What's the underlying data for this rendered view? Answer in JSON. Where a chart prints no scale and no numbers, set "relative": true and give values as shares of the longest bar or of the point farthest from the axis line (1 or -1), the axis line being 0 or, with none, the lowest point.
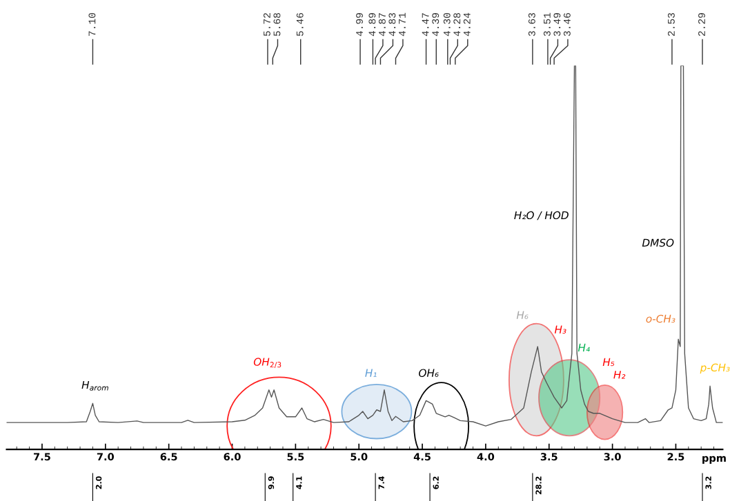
{
  "chart_data": {
    "type": "line",
    "relative": true,
    "xlabel": "ppm",
    "color": "#555555",
    "xlim": [
      7.78,
      2.13
    ],
    "xticks": [
      7.5,
      {
        "value": 7,
        "label": "7.0"
      },
      6.5,
      {
        "value": 6,
        "label": "6.0"
      },
      5.5,
      {
        "value": 5,
        "label": "5.0"
      },
      4.5,
      {
        "value": 4,
        "label": "4.0"
      },
      3.5,
      {
        "value": 3,
        "label": "3.0"
      },
      2.5
    ],
    "x": [
      7.78,
      7.5,
      7.3,
      7.15,
      7.12,
      7.1,
      7.08,
      7.05,
      6.9,
      6.75,
      6.7,
      6.4,
      6.35,
      6.3,
      6.0,
      5.9,
      5.82,
      5.76,
      5.71,
      5.69,
      5.67,
      5.63,
      5.57,
      5.5,
      5.45,
      5.41,
      5.35,
      5.28,
      5.2,
      5.08,
      5.0,
      4.97,
      4.93,
      4.89,
      4.86,
      4.83,
      4.8,
      4.77,
      4.74,
      4.71,
      4.65,
      4.58,
      4.52,
      4.47,
      4.42,
      4.39,
      4.32,
      4.29,
      4.25,
      4.2,
      4.1,
      4.0,
      3.9,
      3.8,
      3.7,
      3.64,
      3.59,
      3.56,
      3.52,
      3.49,
      3.46,
      3.4,
      3.36,
      3.32,
      3.3,
      3.29,
      3.28,
      3.27,
      3.25,
      3.22,
      3.19,
      3.15,
      3.1,
      3.0,
      2.9,
      2.8,
      2.74,
      2.71,
      2.62,
      2.56,
      2.53,
      2.5,
      2.48,
      2.465,
      2.46,
      2.44,
      2.43,
      2.4,
      2.36,
      2.3,
      2.26,
      2.24,
      2.23,
      2.21,
      2.18,
      2.13
    ],
    "values": [
      0.07,
      0.07,
      0.07,
      0.072,
      0.099,
      0.12,
      0.089,
      0.072,
      0.07,
      0.074,
      0.07,
      0.07,
      0.076,
      0.07,
      0.072,
      0.076,
      0.089,
      0.108,
      0.155,
      0.136,
      0.155,
      0.108,
      0.085,
      0.085,
      0.108,
      0.08,
      0.072,
      0.078,
      0.07,
      0.072,
      0.089,
      0.099,
      0.08,
      0.089,
      0.103,
      0.099,
      0.155,
      0.099,
      0.075,
      0.086,
      0.072,
      0.075,
      0.089,
      0.127,
      0.118,
      0.094,
      0.085,
      0.089,
      0.083,
      0.075,
      0.072,
      0.061,
      0.072,
      0.078,
      0.108,
      0.202,
      0.268,
      0.202,
      0.174,
      0.155,
      0.136,
      0.108,
      0.127,
      0.25,
      1,
      1,
      0.25,
      0.221,
      0.155,
      0.118,
      0.099,
      0.094,
      0.094,
      0.08,
      0.07,
      0.07,
      0.08,
      0.07,
      0.075,
      0.103,
      0.108,
      0.155,
      0.287,
      0.268,
      1,
      1,
      0.25,
      0.108,
      0.08,
      0.075,
      0.08,
      0.118,
      0.165,
      0.108,
      0.07,
      0.07
    ],
    "annotations": [
      "H$_{arom}$",
      "OH$_{2/3}$",
      "H₁",
      "OH₆",
      "H₆",
      "H₃",
      "H₄",
      "H₅",
      "H₂",
      "H₂O / HOD",
      "DMSO",
      "o-CH₃",
      "p-CH₃",
      {
        "text": "7.10",
        "x": 7.1
      },
      {
        "text": "5.72",
        "x": 5.72
      },
      {
        "text": "5.68",
        "x": 5.68
      },
      {
        "text": "5.46",
        "x": 5.46
      },
      {
        "text": "4.99",
        "x": 4.99
      },
      {
        "text": "4.89",
        "x": 4.89
      },
      {
        "text": "4.87",
        "x": 4.87
      },
      {
        "text": "4.83",
        "x": 4.83
      },
      {
        "text": "4.71",
        "x": 4.71
      },
      {
        "text": "4.47",
        "x": 4.47
      },
      {
        "text": "4.39",
        "x": 4.39
      },
      {
        "text": "4.30",
        "x": 4.3
      },
      {
        "text": "4.28",
        "x": 4.28
      },
      {
        "text": "4.24",
        "x": 4.24
      },
      {
        "text": "3.63",
        "x": 3.63
      },
      {
        "text": "3.51",
        "x": 3.51
      },
      {
        "text": "3.49",
        "x": 3.49
      },
      {
        "text": "3.46",
        "x": 3.46
      },
      {
        "text": "2.53",
        "x": 2.53
      },
      {
        "text": "2.29",
        "x": 2.29
      },
      "2.0",
      "9.9",
      "4.1",
      "7.4",
      "6.2",
      "28.2",
      "3.2"
    ]
  }
}
